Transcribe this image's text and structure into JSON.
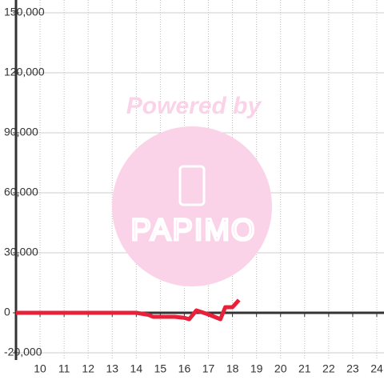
{
  "chart_data": {
    "type": "line",
    "watermark": {
      "text": "Powered by",
      "logo": "PAPIMO"
    },
    "x": [
      9,
      14,
      14.5,
      14.7,
      15.6,
      16,
      16.2,
      16.5,
      17,
      17.5,
      17.7,
      18,
      18.27
    ],
    "series": [
      {
        "color": "#e8213a",
        "values": [
          0,
          0,
          -1000,
          -2000,
          -2000,
          -2500,
          -3200,
          1200,
          -800,
          -3200,
          2800,
          2800,
          6400
        ]
      }
    ],
    "xlim": [
      9,
      24.3
    ],
    "xticks": [
      10,
      11,
      12,
      13,
      14,
      15,
      16,
      17,
      18,
      19,
      20,
      21,
      22,
      23,
      24
    ],
    "ylim": [
      -20000,
      150000
    ],
    "yticks": [
      {
        "value": -20000,
        "label": "-20,000"
      },
      0,
      {
        "value": 30000,
        "label": "30,000"
      },
      {
        "value": 60000,
        "label": "60,000"
      },
      {
        "value": 90000,
        "label": "90,000"
      },
      {
        "value": 120000,
        "label": "120,000"
      },
      {
        "value": 150000,
        "label": "150,000"
      }
    ],
    "grid": true
  }
}
